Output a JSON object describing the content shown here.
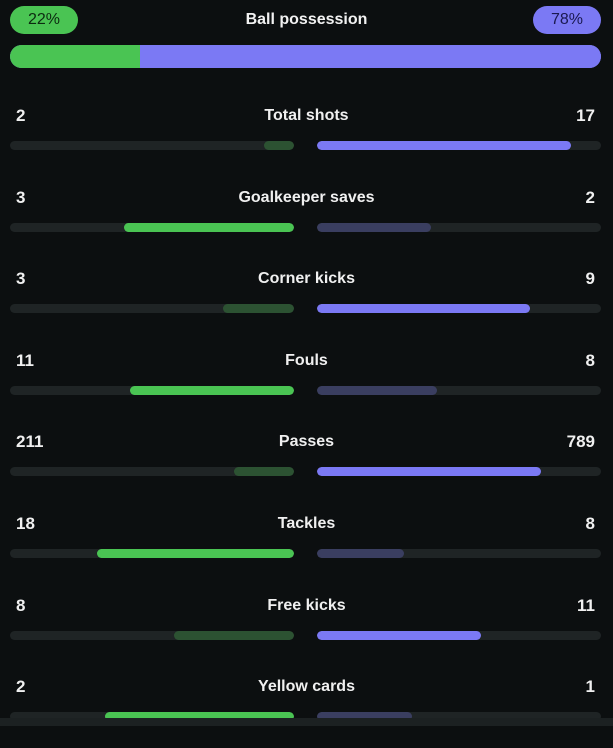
{
  "possession": {
    "title": "Ball possession",
    "home_label": "22%",
    "away_label": "78%",
    "home_value": 22,
    "away_value": 78
  },
  "colors": {
    "home": "#4ac453",
    "away": "#7b79f4",
    "home_dim": "#2c5232",
    "away_dim": "#3a3e60",
    "track": "#1f2425",
    "background": "#0c0f10"
  },
  "stats": [
    {
      "label": "Total shots",
      "home": "2",
      "away": "17"
    },
    {
      "label": "Goalkeeper saves",
      "home": "3",
      "away": "2"
    },
    {
      "label": "Corner kicks",
      "home": "3",
      "away": "9"
    },
    {
      "label": "Fouls",
      "home": "11",
      "away": "8"
    },
    {
      "label": "Passes",
      "home": "211",
      "away": "789"
    },
    {
      "label": "Tackles",
      "home": "18",
      "away": "8"
    },
    {
      "label": "Free kicks",
      "home": "8",
      "away": "11"
    },
    {
      "label": "Yellow cards",
      "home": "2",
      "away": "1"
    }
  ]
}
